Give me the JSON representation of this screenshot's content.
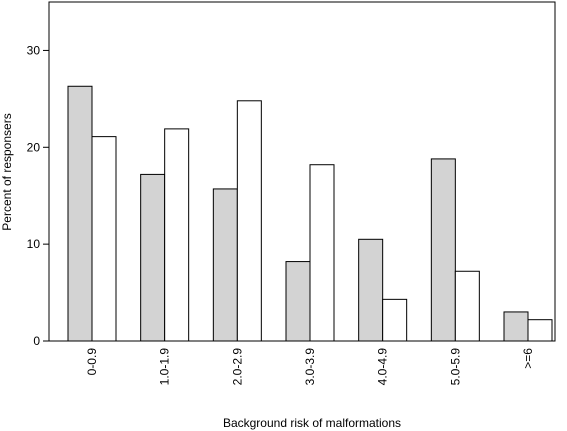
{
  "chart_data": {
    "type": "bar",
    "title": "",
    "xlabel": "Background risk of malformations",
    "ylabel": "Percent of responsers",
    "categories": [
      "0-0.9",
      "1.0-1.9",
      "2.0-2.9",
      "3.0-3.9",
      "4.0-4.9",
      "5.0-5.9",
      ">=6"
    ],
    "series": [
      {
        "values": [
          26.3,
          17.2,
          15.7,
          8.2,
          10.5,
          18.8,
          3.0
        ],
        "color": "#d3d3d3"
      },
      {
        "values": [
          21.1,
          21.9,
          24.8,
          18.2,
          4.3,
          7.2,
          2.2
        ],
        "color": "#ffffff"
      }
    ],
    "ylim": [
      0,
      35
    ],
    "yticks": [
      0,
      10,
      20,
      30
    ],
    "ytick_labels": [
      "0",
      "10",
      "20",
      "30"
    ],
    "grid": false,
    "legend": "none"
  }
}
